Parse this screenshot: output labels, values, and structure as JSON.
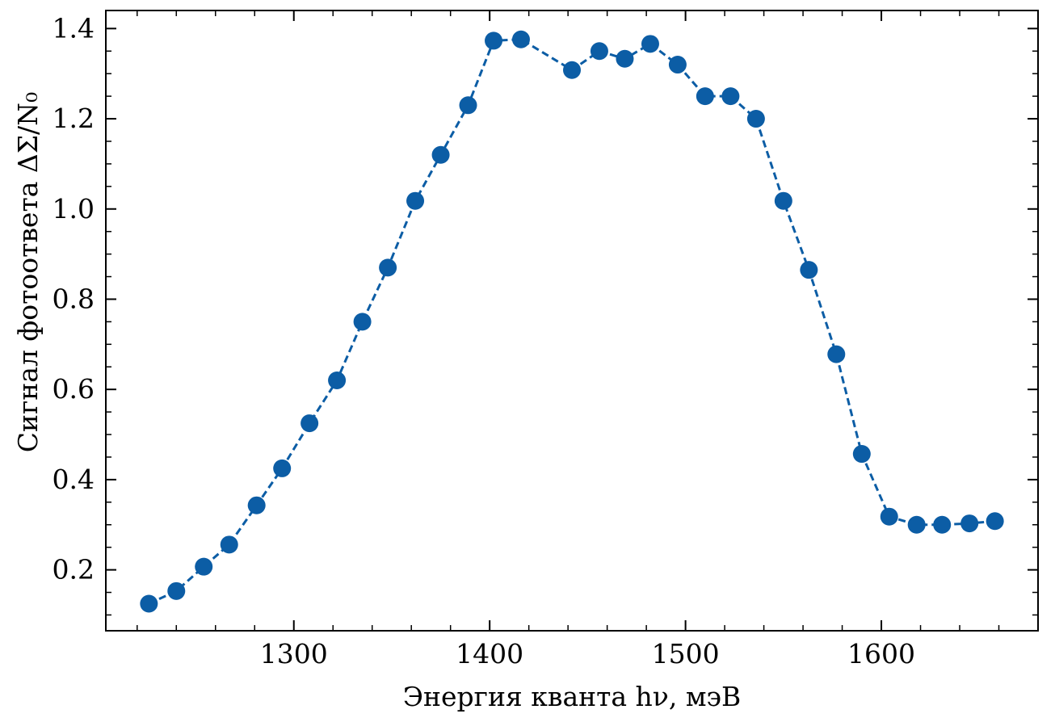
{
  "chart_data": {
    "type": "line",
    "title": "",
    "xlabel": "Энергия кванта hν, мэВ",
    "ylabel": "Сигнал фотоответа ΔΣ/N₀",
    "xlim": [
      1204,
      1680
    ],
    "ylim": [
      0.065,
      1.44
    ],
    "x_ticks": [
      1300,
      1400,
      1500,
      1600
    ],
    "y_ticks": [
      0.2,
      0.4,
      0.6,
      0.8,
      1.0,
      1.2,
      1.4
    ],
    "x_tick_labels": [
      "1300",
      "1400",
      "1500",
      "1600"
    ],
    "y_tick_labels": [
      "0.2",
      "0.4",
      "0.6",
      "0.8",
      "1.0",
      "1.2",
      "1.4"
    ],
    "grid": false,
    "series": [
      {
        "color": "#0C5DA5",
        "line_style": "dashed",
        "marker": "circle",
        "x": [
          1226,
          1240,
          1254,
          1267,
          1281,
          1294,
          1308,
          1322,
          1335,
          1348,
          1362,
          1375,
          1389,
          1402,
          1416,
          1442,
          1456,
          1469,
          1482,
          1496,
          1510,
          1523,
          1536,
          1550,
          1563,
          1577,
          1590,
          1604,
          1618,
          1631,
          1645,
          1658
        ],
        "y": [
          0.125,
          0.153,
          0.207,
          0.256,
          0.343,
          0.425,
          0.525,
          0.62,
          0.75,
          0.87,
          1.018,
          1.12,
          1.23,
          1.373,
          1.376,
          1.308,
          1.35,
          1.333,
          1.366,
          1.32,
          1.25,
          1.25,
          1.2,
          1.018,
          0.865,
          0.678,
          0.457,
          0.318,
          0.3,
          0.3,
          0.303,
          0.308
        ]
      }
    ]
  }
}
